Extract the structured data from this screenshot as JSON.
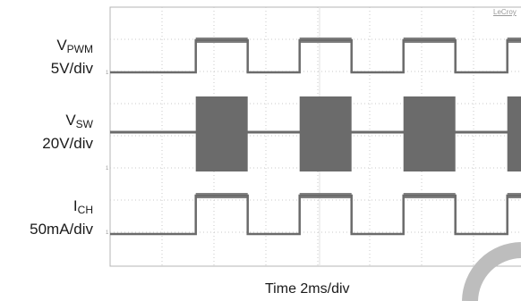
{
  "brand": "LeCroy",
  "time_label": "Time 2ms/div",
  "channels": [
    {
      "sym": "V",
      "sub": "PWM",
      "scale": "5V/div"
    },
    {
      "sym": "V",
      "sub": "SW",
      "scale": "20V/div"
    },
    {
      "sym": "I",
      "sub": "CH",
      "scale": "50mA/div"
    }
  ],
  "chart_data": {
    "type": "line",
    "x_unit": "ms",
    "x_per_div": 2,
    "xlim": [
      0,
      20
    ],
    "period_ms": 4.0,
    "duty_cycle": 0.5,
    "series": [
      {
        "name": "VPWM",
        "waveform": "square",
        "high_ms": [
          [
            3.3,
            5.3
          ],
          [
            7.3,
            9.3
          ],
          [
            11.3,
            13.3
          ],
          [
            15.3,
            17.3
          ]
        ]
      },
      {
        "name": "VSW",
        "waveform": "switching burst",
        "burst_ms": [
          [
            3.3,
            5.3
          ],
          [
            7.3,
            9.3
          ],
          [
            11.3,
            13.3
          ],
          [
            15.3,
            17.3
          ]
        ]
      },
      {
        "name": "ICH",
        "waveform": "square",
        "high_ms": [
          [
            3.3,
            5.3
          ],
          [
            7.3,
            9.3
          ],
          [
            11.3,
            13.3
          ],
          [
            15.3,
            17.3
          ]
        ]
      }
    ],
    "grid": true,
    "colors": {
      "trace": "#6b6b6b",
      "grid": "#c8c8c8",
      "frame": "#b4b4b4"
    }
  }
}
